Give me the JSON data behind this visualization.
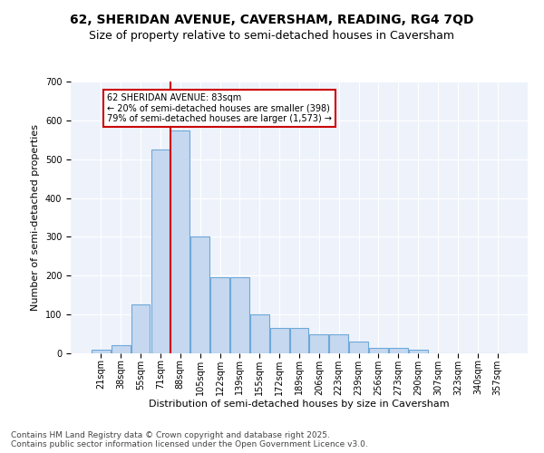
{
  "title": "62, SHERIDAN AVENUE, CAVERSHAM, READING, RG4 7QD",
  "subtitle": "Size of property relative to semi-detached houses in Caversham",
  "xlabel": "Distribution of semi-detached houses by size in Caversham",
  "ylabel": "Number of semi-detached properties",
  "categories": [
    "21sqm",
    "38sqm",
    "55sqm",
    "71sqm",
    "88sqm",
    "105sqm",
    "122sqm",
    "139sqm",
    "155sqm",
    "172sqm",
    "189sqm",
    "206sqm",
    "223sqm",
    "239sqm",
    "256sqm",
    "273sqm",
    "290sqm",
    "307sqm",
    "323sqm",
    "340sqm",
    "357sqm"
  ],
  "values": [
    10,
    20,
    125,
    525,
    575,
    300,
    195,
    195,
    100,
    65,
    65,
    50,
    50,
    30,
    15,
    15,
    10,
    0,
    0,
    0,
    0
  ],
  "bar_color": "#c5d8f0",
  "bar_edge_color": "#6ea8d8",
  "red_line_x": 3.5,
  "red_line_color": "#cc0000",
  "annotation_title": "62 SHERIDAN AVENUE: 83sqm",
  "annotation_line1": "← 20% of semi-detached houses are smaller (398)",
  "annotation_line2": "79% of semi-detached houses are larger (1,573) →",
  "annotation_box_color": "#cc0000",
  "annotation_fill": "#ffffff",
  "ylim": [
    0,
    700
  ],
  "yticks": [
    0,
    100,
    200,
    300,
    400,
    500,
    600,
    700
  ],
  "background_color": "#eef3fb",
  "footer_line1": "Contains HM Land Registry data © Crown copyright and database right 2025.",
  "footer_line2": "Contains public sector information licensed under the Open Government Licence v3.0.",
  "title_fontsize": 10,
  "subtitle_fontsize": 9,
  "tick_fontsize": 7,
  "ylabel_fontsize": 8,
  "xlabel_fontsize": 8,
  "footer_fontsize": 6.5
}
